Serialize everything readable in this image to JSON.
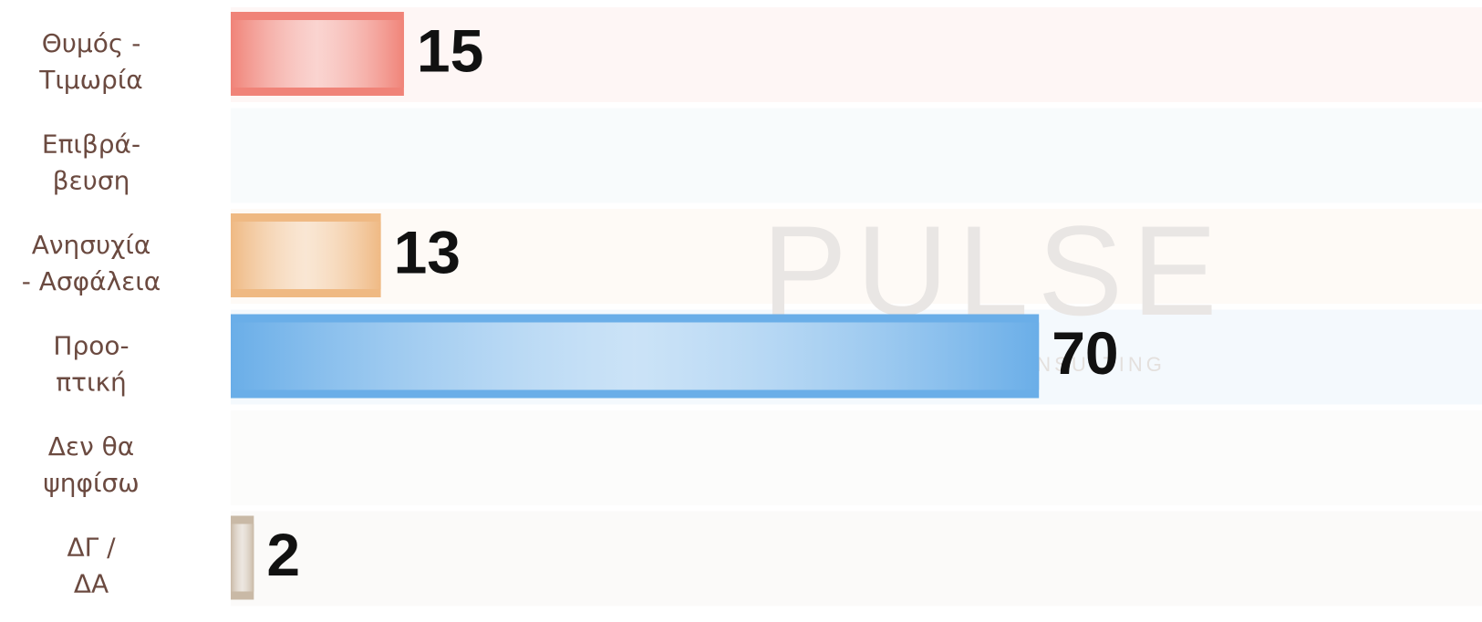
{
  "chart_data": {
    "type": "bar",
    "orientation": "horizontal",
    "categories": [
      [
        "Θυμός -",
        "Τιμωρία"
      ],
      [
        "Επιβρά-",
        "βευση"
      ],
      [
        "Ανησυχία",
        "- Ασφάλεια"
      ],
      [
        "Προο-",
        "πτική"
      ],
      [
        "Δεν θα",
        "ψηφίσω"
      ],
      [
        "ΔΓ /",
        "ΔΑ"
      ]
    ],
    "values": [
      15,
      null,
      13,
      70,
      null,
      2
    ],
    "colors": [
      "#f08378",
      "#9fc4d8",
      "#efb983",
      "#6aaee8",
      "#d8d2cc",
      "#c9b9a6"
    ],
    "xlim": [
      0,
      100
    ],
    "watermark": [
      "PULSE",
      "RESEARCH & CONSULTING"
    ]
  }
}
